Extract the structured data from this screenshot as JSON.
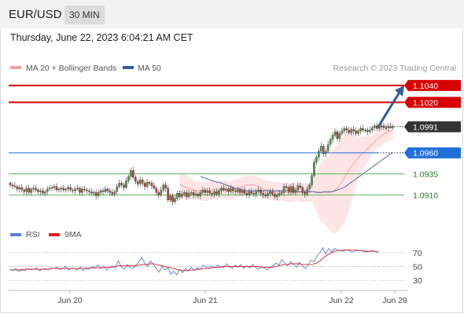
{
  "header": {
    "symbol": "EUR/USD",
    "timeframe": "30 MIN"
  },
  "timestamp": "Thursday, June 22, 2023 6:04:21 AM CET",
  "legend": {
    "bb_label": "MA 20 + Bollinger Bands",
    "ma50_label": "MA 50",
    "credit": "Research © 2023 Trading Central"
  },
  "rsi_legend": {
    "rsi_label": "RSI",
    "ma_label": "9MA"
  },
  "colors": {
    "resistance": "#d80000",
    "support_key": "#1f6fd9",
    "support": "#5db85b",
    "current": "#333333",
    "bollinger_fill": "#fde5e5",
    "ma20": "#f4a0a0",
    "ma50": "#4a6fa5",
    "rsi": "#5a80d6",
    "rsi_ma": "#e02020",
    "candle_up": "#4a9a4a",
    "candle_down": "#cc3a3a",
    "arrow": "#2f5f9e"
  },
  "chart_data": [
    {
      "type": "candlestick",
      "xlabel": "",
      "ylabel": "",
      "ylim": [
        1.0888,
        1.1052
      ],
      "x_ticks": [
        "Jun 20",
        "Jun 21",
        "Jun 22",
        "Jun 29"
      ],
      "levels": [
        {
          "value": 1.104,
          "label": "1.1040",
          "kind": "resistance"
        },
        {
          "value": 1.102,
          "label": "1.1020",
          "kind": "resistance"
        },
        {
          "value": 1.0991,
          "label": "1.0991",
          "kind": "current"
        },
        {
          "value": 1.096,
          "label": "1.0960",
          "kind": "pivot"
        },
        {
          "value": 1.0935,
          "label": "1.0935",
          "kind": "support"
        },
        {
          "value": 1.091,
          "label": "1.0910",
          "kind": "support"
        }
      ],
      "close": [
        1.0922,
        1.0921,
        1.092,
        1.0917,
        1.0919,
        1.0916,
        1.0914,
        1.0918,
        1.0913,
        1.0917,
        1.0918,
        1.0916,
        1.0914,
        1.0915,
        1.0912,
        1.0914,
        1.0917,
        1.0918,
        1.0919,
        1.092,
        1.0916,
        1.0917,
        1.0918,
        1.0916,
        1.0917,
        1.0919,
        1.0916,
        1.0915,
        1.0917,
        1.0918,
        1.0913,
        1.0917,
        1.0916,
        1.0915,
        1.0914,
        1.0912,
        1.0913,
        1.0909,
        1.0913,
        1.0915,
        1.0914,
        1.0917,
        1.0915,
        1.0913,
        1.0911,
        1.0914,
        1.092,
        1.0924,
        1.0922,
        1.0919,
        1.0927,
        1.0932,
        1.0939,
        1.0931,
        1.0926,
        1.0923,
        1.0928,
        1.0924,
        1.092,
        1.0925,
        1.0924,
        1.0921,
        1.0918,
        1.0913,
        1.091,
        1.0916,
        1.0922,
        1.0918,
        1.0904,
        1.0909,
        1.0902,
        1.0906,
        1.0912,
        1.0908,
        1.0911,
        1.0913,
        1.0908,
        1.0912,
        1.0913,
        1.091,
        1.0911,
        1.0909,
        1.0913,
        1.0916,
        1.0913,
        1.0915,
        1.0912,
        1.0911,
        1.0914,
        1.0911,
        1.0915,
        1.0918,
        1.0916,
        1.0917,
        1.0914,
        1.0918,
        1.0915,
        1.0914,
        1.0916,
        1.0913,
        1.0915,
        1.0912,
        1.091,
        1.0914,
        1.0912,
        1.0911,
        1.0914,
        1.0916,
        1.0912,
        1.091,
        1.0909,
        1.0912,
        1.0914,
        1.0911,
        1.0908,
        1.091,
        1.0912,
        1.0913,
        1.092,
        1.0919,
        1.0914,
        1.092,
        1.0913,
        1.0916,
        1.0921,
        1.0919,
        1.0913,
        1.0911,
        1.0917,
        1.0922,
        1.0933,
        1.0949,
        1.0955,
        1.0962,
        1.0968,
        1.0959,
        1.0962,
        1.097,
        1.0976,
        1.0981,
        1.0985,
        1.0977,
        1.0983,
        1.0986,
        1.0989,
        1.0987,
        1.0984,
        1.0988,
        1.0986,
        1.0983,
        1.0986,
        1.0989,
        1.0987,
        1.0987,
        1.0985,
        1.0987,
        1.099,
        1.0992,
        1.0989,
        1.0991,
        1.0992,
        1.099,
        1.099,
        1.0991,
        1.0991,
        1.0991
      ],
      "ma20": [
        1.0923,
        1.0921,
        1.092,
        1.0919,
        1.0918,
        1.0917,
        1.0916,
        1.0915,
        1.0915,
        1.0915,
        1.0914,
        1.0914,
        1.0914,
        1.0915,
        1.0916,
        1.0916,
        1.0916,
        1.0916,
        1.0916,
        1.0916,
        1.0916,
        1.0915,
        1.0915,
        1.0916,
        1.0917,
        1.0918,
        1.0919,
        1.092,
        1.0921,
        1.0922,
        1.0922,
        1.0922,
        1.0922,
        1.0921,
        1.092,
        1.0919,
        1.0917,
        1.0916,
        1.0916,
        1.0915,
        1.0915,
        1.0914,
        1.0914,
        1.0914,
        1.0914,
        1.0914,
        1.0913,
        1.0913,
        1.0913,
        1.0913,
        1.0914,
        1.0914,
        1.0913,
        1.0913,
        1.0913,
        1.0913,
        1.0913,
        1.0914,
        1.0914,
        1.0914,
        1.0914,
        1.0913,
        1.0913,
        1.0913,
        1.0913,
        1.0913,
        1.0914,
        1.0916,
        1.0918,
        1.0922,
        1.0926,
        1.093,
        1.0935,
        1.094,
        1.0944,
        1.0947,
        1.0951,
        1.0954,
        1.0957,
        1.096,
        1.0962,
        1.0965,
        1.0968,
        1.097,
        1.0973,
        1.0976,
        1.0978,
        1.098,
        1.0982,
        1.0984,
        1.0985,
        1.0986,
        1.0987
      ],
      "ma50": [
        1.0932,
        1.0931,
        1.093,
        1.0929,
        1.0928,
        1.0927,
        1.0926,
        1.0925,
        1.0925,
        1.0924,
        1.0923,
        1.0922,
        1.0921,
        1.092,
        1.0919,
        1.0918,
        1.0917,
        1.0917,
        1.0916,
        1.0916,
        1.0915,
        1.0915,
        1.0915,
        1.0915,
        1.0915,
        1.0915,
        1.0915,
        1.0915,
        1.0915,
        1.0915,
        1.0915,
        1.0915,
        1.0915,
        1.0915,
        1.0915,
        1.0915,
        1.0915,
        1.0915,
        1.0915,
        1.0914,
        1.0914,
        1.0914,
        1.0914,
        1.0914,
        1.0914,
        1.0914,
        1.0914,
        1.0914,
        1.0914,
        1.0914,
        1.0913,
        1.0913,
        1.0913,
        1.0914,
        1.0914,
        1.0914,
        1.0914,
        1.0914,
        1.0915,
        1.0916,
        1.0917,
        1.0918,
        1.0919,
        1.0921,
        1.0923,
        1.0925,
        1.0927,
        1.0929,
        1.0931,
        1.0933,
        1.0935,
        1.0937,
        1.0939,
        1.0941,
        1.0943,
        1.0945,
        1.0947,
        1.0949,
        1.0951,
        1.0953,
        1.0955,
        1.0957,
        1.0959,
        1.096
      ],
      "forecast": {
        "from": 1.0991,
        "to": 1.104
      }
    },
    {
      "type": "line",
      "ylim": [
        20,
        80
      ],
      "y_ticks": [
        30,
        50,
        70
      ],
      "series": [
        {
          "name": "RSI",
          "values": [
            46,
            45,
            47,
            43,
            45,
            44,
            47,
            45,
            46,
            48,
            44,
            46,
            47,
            45,
            48,
            47,
            49,
            46,
            47,
            50,
            45,
            48,
            47,
            45,
            49,
            44,
            47,
            46,
            50,
            48,
            52,
            47,
            50,
            45,
            49,
            51,
            48,
            58,
            50,
            46,
            53,
            49,
            47,
            52,
            56,
            63,
            55,
            50,
            58,
            53,
            47,
            42,
            50,
            45,
            48,
            39,
            43,
            38,
            46,
            41,
            47,
            44,
            49,
            44,
            48,
            46,
            52,
            49,
            47,
            51,
            48,
            52,
            50,
            48,
            54,
            50,
            47,
            52,
            49,
            53,
            47,
            51,
            48,
            53,
            49,
            46,
            50,
            48,
            45,
            49,
            51,
            55,
            52,
            60,
            55,
            51,
            57,
            53,
            49,
            56,
            51,
            47,
            53,
            59,
            57,
            65,
            70,
            77,
            68,
            76,
            71,
            76,
            74,
            73,
            72,
            74,
            73,
            71,
            72,
            74,
            73,
            72,
            71,
            72,
            73,
            72,
            70
          ]
        },
        {
          "name": "9MA",
          "values": [
            45,
            45,
            45,
            45,
            46,
            46,
            46,
            46,
            46,
            46,
            46,
            46,
            46,
            46,
            47,
            47,
            47,
            47,
            47,
            47,
            47,
            47,
            47,
            47,
            47,
            47,
            48,
            48,
            48,
            48,
            48,
            48,
            49,
            49,
            49,
            49,
            50,
            51,
            51,
            51,
            51,
            51,
            51,
            51,
            52,
            53,
            53,
            53,
            54,
            54,
            53,
            52,
            51,
            50,
            49,
            48,
            47,
            46,
            45,
            44,
            44,
            44,
            45,
            45,
            46,
            46,
            47,
            47,
            48,
            48,
            49,
            49,
            49,
            50,
            50,
            50,
            50,
            50,
            50,
            50,
            50,
            50,
            50,
            50,
            50,
            50,
            49,
            49,
            49,
            49,
            49,
            50,
            51,
            52,
            53,
            53,
            54,
            54,
            54,
            54,
            53,
            53,
            53,
            53,
            54,
            55,
            58,
            62,
            65,
            68,
            70,
            72,
            73,
            73,
            74,
            74,
            74,
            74,
            74,
            73,
            73,
            73,
            72,
            72,
            72,
            72,
            71
          ]
        }
      ]
    }
  ]
}
